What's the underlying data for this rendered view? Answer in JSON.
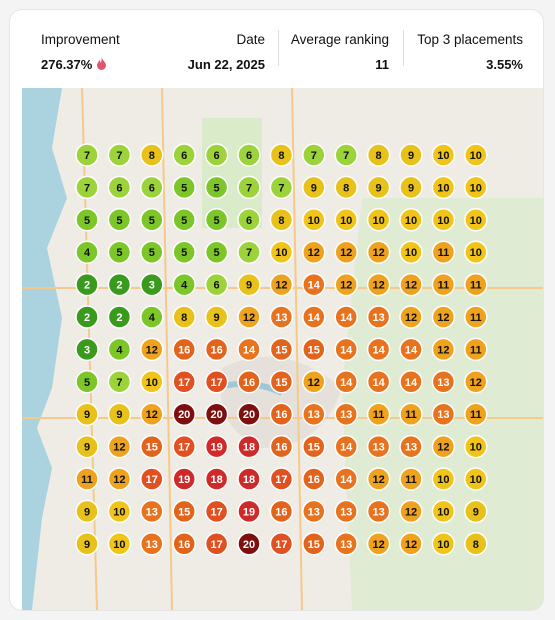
{
  "header": {
    "stats": [
      {
        "label": "Improvement",
        "value": "276.37%"
      },
      {
        "label": "Date",
        "value": "Jun 22, 2025"
      },
      {
        "label": "Average ranking",
        "value": "11"
      },
      {
        "label": "Top 3 placements",
        "value": "3.55%"
      }
    ]
  },
  "grid": {
    "rows": [
      [
        7,
        7,
        8,
        6,
        6,
        6,
        8,
        7,
        7,
        8,
        9,
        10,
        10
      ],
      [
        7,
        6,
        6,
        5,
        5,
        7,
        7,
        9,
        8,
        9,
        9,
        10,
        10
      ],
      [
        5,
        5,
        5,
        5,
        5,
        6,
        8,
        10,
        10,
        10,
        10,
        10,
        10
      ],
      [
        4,
        5,
        5,
        5,
        5,
        7,
        10,
        12,
        12,
        12,
        10,
        11,
        10
      ],
      [
        2,
        2,
        3,
        4,
        6,
        9,
        12,
        14,
        12,
        12,
        12,
        11,
        11
      ],
      [
        2,
        2,
        4,
        8,
        9,
        12,
        13,
        14,
        14,
        13,
        12,
        12,
        11
      ],
      [
        3,
        4,
        12,
        16,
        16,
        14,
        15,
        15,
        14,
        14,
        14,
        12,
        11
      ],
      [
        5,
        7,
        10,
        17,
        17,
        16,
        15,
        12,
        14,
        14,
        14,
        13,
        12
      ],
      [
        9,
        9,
        12,
        20,
        20,
        20,
        16,
        13,
        13,
        11,
        11,
        13,
        11
      ],
      [
        9,
        12,
        15,
        17,
        19,
        18,
        16,
        15,
        14,
        13,
        13,
        12,
        10
      ],
      [
        11,
        12,
        17,
        19,
        18,
        18,
        17,
        16,
        14,
        12,
        11,
        10,
        10
      ],
      [
        9,
        10,
        13,
        15,
        17,
        19,
        16,
        13,
        13,
        13,
        12,
        10,
        9
      ],
      [
        9,
        10,
        13,
        16,
        17,
        20,
        17,
        15,
        13,
        12,
        12,
        10,
        8
      ]
    ]
  }
}
